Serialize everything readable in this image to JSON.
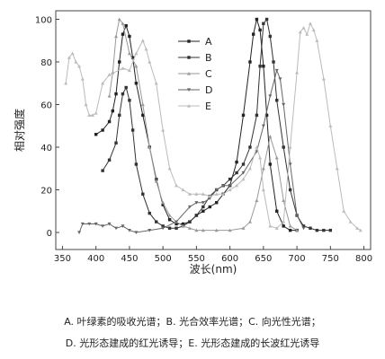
{
  "chart_data": {
    "type": "line",
    "xlabel": "波长(nm)",
    "ylabel": "相对强度",
    "xlim": [
      340,
      810
    ],
    "ylim": [
      -8,
      104
    ],
    "xticks": [
      350,
      400,
      450,
      500,
      550,
      600,
      650,
      700,
      750,
      800
    ],
    "yticks": [
      0,
      20,
      40,
      60,
      80,
      100
    ],
    "grid": false,
    "legend_position": "top-center",
    "series": [
      {
        "name": "A",
        "color": "#222222",
        "marker": "square",
        "x": [
          400,
          410,
          420,
          425,
          430,
          435,
          440,
          445,
          450,
          455,
          460,
          470,
          480,
          490,
          500,
          510,
          520,
          530,
          540,
          550,
          560,
          570,
          580,
          590,
          600,
          610,
          620,
          630,
          635,
          640,
          645,
          650,
          655,
          660,
          670,
          680,
          690,
          700
        ],
        "y": [
          46,
          48,
          52,
          57,
          65,
          80,
          93,
          97,
          92,
          82,
          70,
          55,
          40,
          25,
          13,
          6,
          4,
          4,
          5,
          8,
          10,
          12,
          14,
          18,
          22,
          33,
          55,
          80,
          93,
          100,
          95,
          78,
          55,
          32,
          10,
          3,
          1,
          1
        ]
      },
      {
        "name": "B",
        "color": "#333333",
        "marker": "square",
        "x": [
          410,
          420,
          430,
          435,
          440,
          445,
          450,
          455,
          460,
          470,
          480,
          490,
          500,
          510,
          520,
          530,
          540,
          550,
          560,
          570,
          580,
          590,
          600,
          610,
          620,
          630,
          640,
          645,
          650,
          655,
          660,
          665,
          670,
          680,
          690,
          700,
          710,
          720,
          730,
          740,
          750
        ],
        "y": [
          29,
          34,
          42,
          55,
          65,
          68,
          62,
          48,
          32,
          18,
          9,
          5,
          3,
          2,
          2,
          3,
          5,
          8,
          12,
          17,
          20,
          22,
          25,
          28,
          32,
          40,
          55,
          78,
          98,
          100,
          92,
          80,
          62,
          40,
          20,
          8,
          3,
          2,
          1,
          1,
          1
        ]
      },
      {
        "name": "C",
        "color": "#999999",
        "marker": "triangle",
        "x": [
          420,
          425,
          430,
          435,
          440,
          450,
          460,
          470,
          480,
          490,
          500,
          510,
          520,
          530,
          540,
          550,
          560,
          580,
          600,
          620,
          630,
          640,
          650,
          660,
          670,
          680,
          690,
          700
        ],
        "y": [
          64,
          75,
          92,
          100,
          98,
          84,
          78,
          60,
          40,
          24,
          14,
          8,
          5,
          3,
          2,
          1,
          1,
          1,
          1,
          2,
          5,
          15,
          30,
          45,
          35,
          15,
          3,
          1
        ]
      },
      {
        "name": "D",
        "color": "#666666",
        "marker": "triangle-down",
        "x": [
          375,
          380,
          390,
          400,
          410,
          420,
          430,
          440,
          450,
          460,
          480,
          500,
          520,
          540,
          550,
          560,
          570,
          580,
          590,
          600,
          620,
          640,
          650,
          660,
          670,
          675,
          680,
          690,
          700,
          710
        ],
        "y": [
          0,
          4,
          4,
          4,
          3,
          4,
          2,
          3,
          1,
          0,
          1,
          2,
          5,
          12,
          14,
          14,
          16,
          20,
          22,
          22,
          28,
          38,
          50,
          64,
          76,
          72,
          60,
          32,
          8,
          2
        ]
      },
      {
        "name": "E",
        "color": "#bbbbbb",
        "marker": "triangle",
        "x": [
          355,
          360,
          365,
          370,
          375,
          380,
          385,
          390,
          395,
          400,
          410,
          420,
          440,
          450,
          460,
          470,
          475,
          480,
          490,
          500,
          510,
          520,
          530,
          540,
          550,
          560,
          570,
          580,
          590,
          600,
          610,
          620,
          630,
          640,
          645,
          650,
          660,
          670,
          680,
          690,
          700,
          705,
          710,
          715,
          720,
          725,
          730,
          740,
          750,
          760,
          770,
          780,
          790,
          795
        ],
        "y": [
          70,
          82,
          84,
          80,
          78,
          72,
          60,
          55,
          55,
          56,
          70,
          74,
          77,
          76,
          84,
          90,
          86,
          80,
          70,
          48,
          30,
          22,
          20,
          18,
          18,
          18,
          17,
          18,
          18,
          20,
          22,
          25,
          30,
          40,
          35,
          20,
          3,
          2,
          5,
          40,
          75,
          94,
          96,
          93,
          98,
          95,
          90,
          72,
          50,
          30,
          10,
          5,
          2,
          1
        ]
      }
    ]
  },
  "caption": {
    "line1": "A. 叶绿素的吸收光谱；B. 光合效率光谱；C. 向光性光谱；",
    "line2": "D. 光形态建成的红光诱导；E. 光形态建成的长波红光诱导"
  }
}
